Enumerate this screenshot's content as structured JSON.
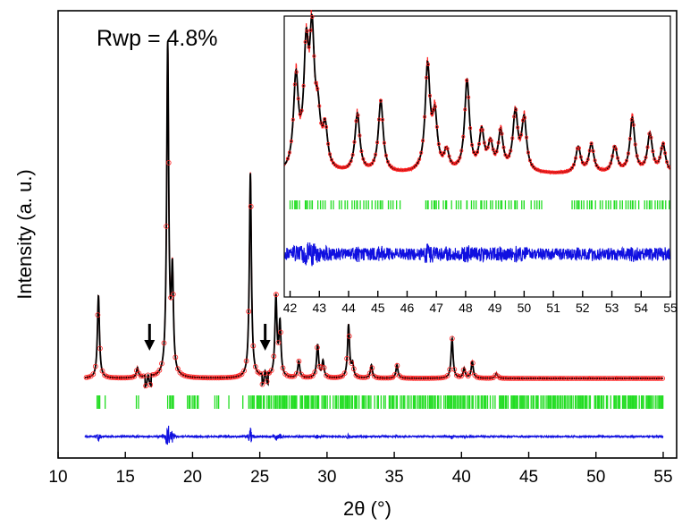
{
  "chart_data": {
    "type": "line",
    "annotation": "Rwp = 4.8%",
    "xlabel": "2θ (°)",
    "ylabel": "Intensity (a. u.)",
    "xlim": [
      10,
      56
    ],
    "x_ticks": [
      "10",
      "15",
      "20",
      "25",
      "30",
      "35",
      "40",
      "45",
      "50",
      "55"
    ],
    "colors": {
      "observed": "#ff2020",
      "calculated": "#000000",
      "bragg": "#22dd22",
      "difference": "#1010e0"
    },
    "peaks": [
      {
        "x": 13.0,
        "h": 0.25
      },
      {
        "x": 15.9,
        "h": 0.03
      },
      {
        "x": 16.7,
        "h": 0.04
      },
      {
        "x": 18.15,
        "h": 1.0
      },
      {
        "x": 18.5,
        "h": 0.3
      },
      {
        "x": 24.3,
        "h": 0.62
      },
      {
        "x": 25.4,
        "h": 0.05
      },
      {
        "x": 26.2,
        "h": 0.24
      },
      {
        "x": 26.5,
        "h": 0.16
      },
      {
        "x": 27.9,
        "h": 0.05
      },
      {
        "x": 29.3,
        "h": 0.1
      },
      {
        "x": 29.7,
        "h": 0.05
      },
      {
        "x": 31.6,
        "h": 0.16
      },
      {
        "x": 31.9,
        "h": 0.04
      },
      {
        "x": 33.3,
        "h": 0.04
      },
      {
        "x": 35.2,
        "h": 0.04
      },
      {
        "x": 39.3,
        "h": 0.12
      },
      {
        "x": 40.2,
        "h": 0.03
      },
      {
        "x": 40.8,
        "h": 0.05
      },
      {
        "x": 42.6,
        "h": 0.015
      }
    ],
    "dips": [
      16.7,
      25.4
    ],
    "arrows": [
      16.8,
      25.4
    ],
    "inset": {
      "xlim": [
        41.8,
        55
      ],
      "x_ticks": [
        "42",
        "43",
        "44",
        "45",
        "46",
        "47",
        "48",
        "49",
        "50",
        "51",
        "52",
        "53",
        "54",
        "55"
      ],
      "peaks": [
        {
          "x": 42.2,
          "h": 0.7
        },
        {
          "x": 42.55,
          "h": 0.85
        },
        {
          "x": 42.75,
          "h": 0.95
        },
        {
          "x": 42.95,
          "h": 0.35
        },
        {
          "x": 43.2,
          "h": 0.3
        },
        {
          "x": 44.3,
          "h": 0.45
        },
        {
          "x": 45.1,
          "h": 0.55
        },
        {
          "x": 46.7,
          "h": 0.8
        },
        {
          "x": 46.95,
          "h": 0.4
        },
        {
          "x": 47.35,
          "h": 0.15
        },
        {
          "x": 48.05,
          "h": 0.7
        },
        {
          "x": 48.55,
          "h": 0.3
        },
        {
          "x": 48.85,
          "h": 0.2
        },
        {
          "x": 49.2,
          "h": 0.3
        },
        {
          "x": 49.7,
          "h": 0.45
        },
        {
          "x": 50.0,
          "h": 0.4
        },
        {
          "x": 51.85,
          "h": 0.2
        },
        {
          "x": 52.3,
          "h": 0.22
        },
        {
          "x": 53.1,
          "h": 0.2
        },
        {
          "x": 53.7,
          "h": 0.42
        },
        {
          "x": 54.3,
          "h": 0.3
        },
        {
          "x": 54.75,
          "h": 0.22
        }
      ]
    }
  }
}
